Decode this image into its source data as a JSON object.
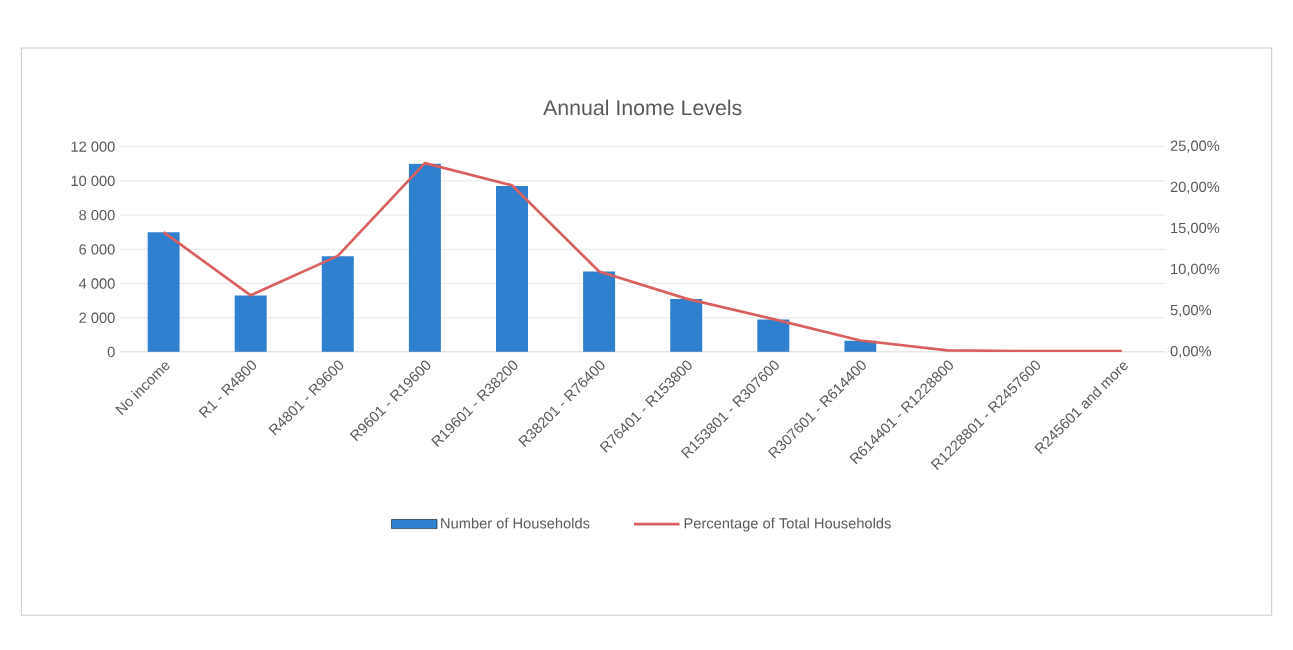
{
  "chart_data": {
    "type": "bar",
    "title": "Annual Inome Levels",
    "categories": [
      "No income",
      "R1 - R4800",
      "R4801 - R9600",
      "R9601 - R19600",
      "R19601 - R38200",
      "R38201 - R76400",
      "R76401 - R153800",
      "R153801 - R307600",
      "R307601 - R614400",
      "R614401 - R1228800",
      "R1228801 - R2457600",
      "R245601 and more"
    ],
    "series": [
      {
        "name": "Number of Households",
        "color": "#2f80cf",
        "values": [
          7000,
          3300,
          5600,
          11000,
          9700,
          4700,
          3100,
          1900,
          650,
          null,
          null,
          null
        ]
      },
      {
        "name": "Percentage of Total Households",
        "type": "line",
        "axis": "y2",
        "color": "#d9605e",
        "values": [
          14.6,
          6.9,
          11.7,
          23.0,
          20.3,
          9.8,
          6.5,
          4.0,
          1.4,
          0.2,
          0.1,
          0.1
        ]
      }
    ],
    "ylim": [
      0,
      12000
    ],
    "yticks": [
      0,
      {
        "value": 2000,
        "label": "2 000"
      },
      {
        "value": 4000,
        "label": "4 000"
      },
      {
        "value": 6000,
        "label": "6 000"
      },
      {
        "value": 8000,
        "label": "8 000"
      },
      {
        "value": 10000,
        "label": "10 000"
      },
      {
        "value": 12000,
        "label": "12 000"
      }
    ],
    "y2lim": [
      0,
      25
    ],
    "y2ticks": [
      {
        "value": 0,
        "label": "0,00%"
      },
      {
        "value": 5,
        "label": "5,00%"
      },
      {
        "value": 10,
        "label": "10,00%"
      },
      {
        "value": 15,
        "label": "15,00%"
      },
      {
        "value": 20,
        "label": "20,00%"
      },
      {
        "value": 25,
        "label": "25,00%"
      }
    ],
    "grid": "y",
    "legend": "bottom",
    "marker": "none",
    "line_style": "solid"
  }
}
